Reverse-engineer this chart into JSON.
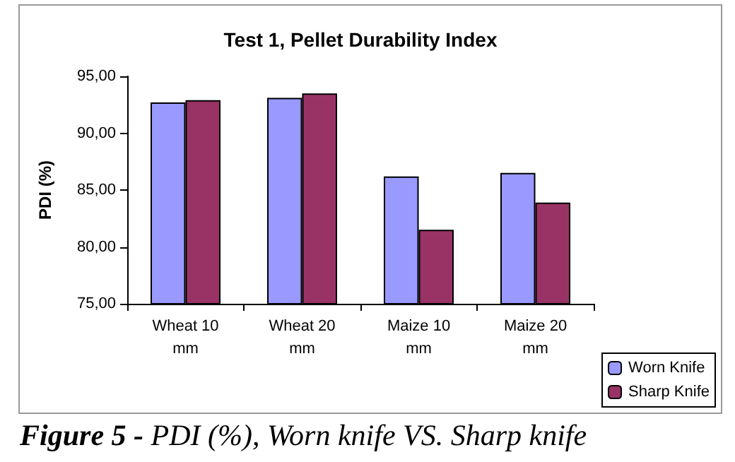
{
  "chart_data": {
    "type": "bar",
    "title": "Test 1, Pellet Durability Index",
    "ylabel": "PDI (%)",
    "categories": [
      "Wheat 10 mm",
      "Wheat 20 mm",
      "Maize 10 mm",
      "Maize 20 mm"
    ],
    "series": [
      {
        "name": "Worn Knife",
        "color": "#9999ff",
        "values": [
          92.7,
          93.1,
          86.2,
          86.5
        ]
      },
      {
        "name": "Sharp Knife",
        "color": "#993366",
        "values": [
          92.9,
          93.5,
          81.5,
          83.9
        ]
      }
    ],
    "ylim": [
      75,
      95
    ],
    "yticks": [
      {
        "value": 75,
        "label": "75,00"
      },
      {
        "value": 80,
        "label": "80,00"
      },
      {
        "value": 85,
        "label": "85,00"
      },
      {
        "value": 90,
        "label": "90,00"
      },
      {
        "value": 95,
        "label": "95,00"
      }
    ],
    "grid": false,
    "legend": "bottom right",
    "annotations": [
      "Figure 5 - PDI (%), Worn knife VS. Sharp knife"
    ]
  }
}
